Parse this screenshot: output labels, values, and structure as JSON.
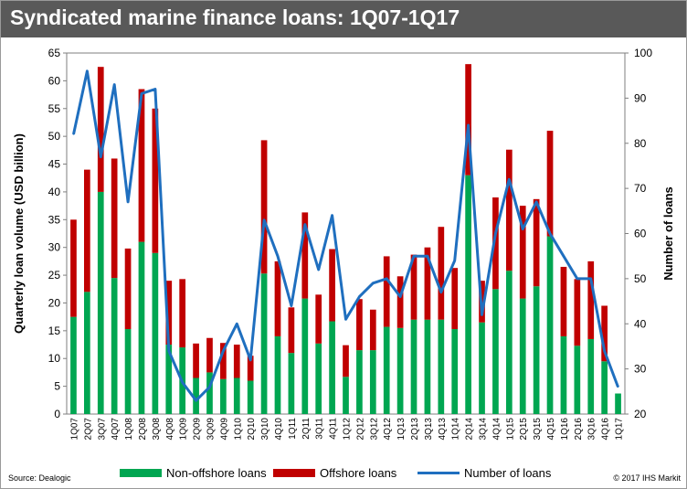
{
  "title": "Syndicated marine finance loans: 1Q07-1Q17",
  "source": "Source: Dealogic",
  "copyright": "© 2017 IHS Markit",
  "colors": {
    "title_bg": "#595959",
    "non_offshore": "#00a651",
    "offshore": "#c00000",
    "number_line": "#1f6fbf"
  },
  "chart_data": {
    "type": "bar",
    "stacked": true,
    "categories": [
      "1Q07",
      "2Q07",
      "3Q07",
      "4Q07",
      "1Q08",
      "2Q08",
      "3Q08",
      "4Q08",
      "1Q09",
      "2Q09",
      "3Q09",
      "4Q09",
      "1Q10",
      "2Q10",
      "3Q10",
      "4Q10",
      "1Q11",
      "2Q11",
      "3Q11",
      "4Q11",
      "1Q12",
      "2Q12",
      "3Q12",
      "4Q12",
      "1Q13",
      "2Q13",
      "3Q13",
      "4Q13",
      "1Q14",
      "2Q14",
      "3Q14",
      "4Q14",
      "1Q15",
      "2Q15",
      "3Q15",
      "4Q15",
      "1Q16",
      "2Q16",
      "3Q16",
      "4Q16",
      "1Q17"
    ],
    "series": [
      {
        "name": "Non-offshore loans",
        "axis": "left",
        "type": "bar",
        "values": [
          17.5,
          22,
          40,
          24.5,
          15.3,
          31,
          29,
          12.5,
          12,
          6.5,
          7.5,
          6.3,
          6.5,
          6,
          25.3,
          14,
          11,
          20.8,
          12.7,
          16.7,
          6.7,
          11.5,
          11.5,
          15.7,
          15.5,
          17,
          17,
          17,
          15.3,
          43,
          16.5,
          22.5,
          25.8,
          20.8,
          23,
          32,
          14,
          12.3,
          13.5,
          9.5,
          3.7
        ]
      },
      {
        "name": "Offshore loans",
        "axis": "left",
        "type": "bar",
        "values": [
          17.5,
          22,
          22.5,
          21.5,
          14.5,
          27.5,
          26,
          11.5,
          12.3,
          6.2,
          6.2,
          6.5,
          6,
          4.5,
          24,
          13.5,
          8.2,
          15.5,
          8.8,
          13,
          5.7,
          9.2,
          7.3,
          12.7,
          9.3,
          11.7,
          13,
          16.7,
          11,
          20,
          7.5,
          16.5,
          21.8,
          16.7,
          15.7,
          19,
          12.5,
          12,
          14,
          10,
          0
        ]
      },
      {
        "name": "Number of loans",
        "axis": "right",
        "type": "line",
        "values": [
          82,
          96,
          77,
          93,
          67,
          91,
          92,
          34,
          27,
          23,
          26,
          34,
          40,
          32,
          63,
          55,
          44,
          62,
          52,
          64,
          41,
          46,
          49,
          50,
          46,
          55,
          55,
          47,
          54,
          84,
          42,
          60,
          72,
          61,
          67,
          60,
          55,
          50,
          50,
          34,
          26
        ]
      }
    ],
    "ylabel": "Quarterly loan volume (USD billion)",
    "y2label": "Number of loans",
    "ylim": [
      0,
      65
    ],
    "y2lim": [
      20,
      100
    ],
    "yticks": [
      0,
      5,
      10,
      15,
      20,
      25,
      30,
      35,
      40,
      45,
      50,
      55,
      60,
      65
    ],
    "y2ticks": [
      20,
      30,
      40,
      50,
      60,
      70,
      80,
      90,
      100
    ],
    "grid": false,
    "legend": "bottom"
  }
}
